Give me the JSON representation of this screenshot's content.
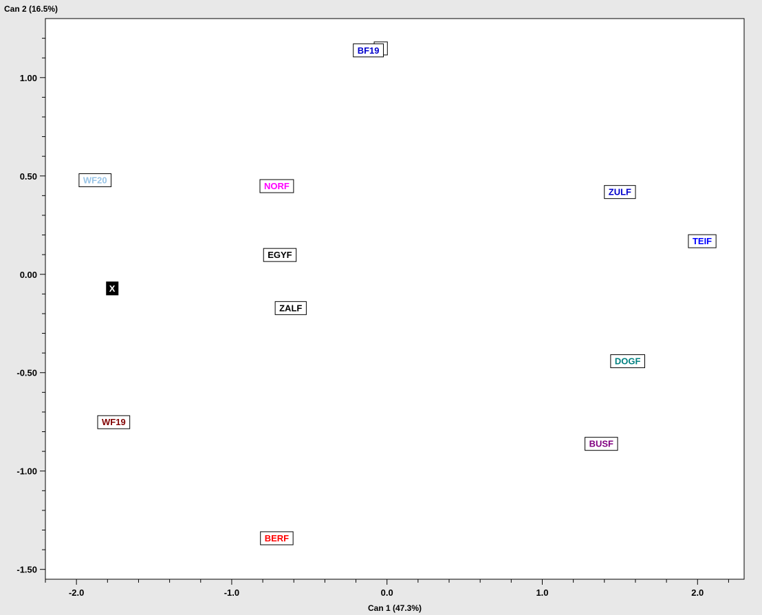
{
  "chart_data": {
    "type": "scatter",
    "xlabel": "Can 1 (47.3%)",
    "ylabel": "Can 2 (16.5%)",
    "xlim": [
      -2.2,
      2.3
    ],
    "ylim": [
      -1.55,
      1.3
    ],
    "x_ticks": [
      -2.0,
      -1.0,
      0.0,
      1.0,
      2.0
    ],
    "x_tick_labels": [
      "-2.0",
      "-1.0",
      "0.0",
      "1.0",
      "2.0"
    ],
    "y_ticks": [
      -1.5,
      -1.0,
      -0.5,
      0.0,
      0.5,
      1.0
    ],
    "y_tick_labels": [
      "-1.50",
      "-1.00",
      "-0.50",
      "0.00",
      "0.50",
      "1.00"
    ],
    "grid": false,
    "points": [
      {
        "label": "0",
        "x": -0.04,
        "y": 1.15,
        "color": "#008000"
      },
      {
        "label": "BF19",
        "x": -0.12,
        "y": 1.14,
        "color": "#0000cc"
      },
      {
        "label": "WF20",
        "x": -1.88,
        "y": 0.48,
        "color": "#99c4e6"
      },
      {
        "label": "NORF",
        "x": -0.71,
        "y": 0.45,
        "color": "#ff00ff"
      },
      {
        "label": "ZULF",
        "x": 1.5,
        "y": 0.42,
        "color": "#0000cc"
      },
      {
        "label": "TEIF",
        "x": 2.03,
        "y": 0.17,
        "color": "#0000ff"
      },
      {
        "label": "EGYF",
        "x": -0.69,
        "y": 0.1,
        "color": "#000000"
      },
      {
        "label": "X",
        "x": -1.77,
        "y": -0.07,
        "color": "#000000",
        "inverted": true
      },
      {
        "label": "ZALF",
        "x": -0.62,
        "y": -0.17,
        "color": "#000000"
      },
      {
        "label": "DOGF",
        "x": 1.55,
        "y": -0.44,
        "color": "#008080"
      },
      {
        "label": "WF19",
        "x": -1.76,
        "y": -0.75,
        "color": "#800000"
      },
      {
        "label": "BUSF",
        "x": 1.38,
        "y": -0.86,
        "color": "#800080"
      },
      {
        "label": "BERF",
        "x": -0.71,
        "y": -1.34,
        "color": "#ff0000"
      }
    ]
  }
}
